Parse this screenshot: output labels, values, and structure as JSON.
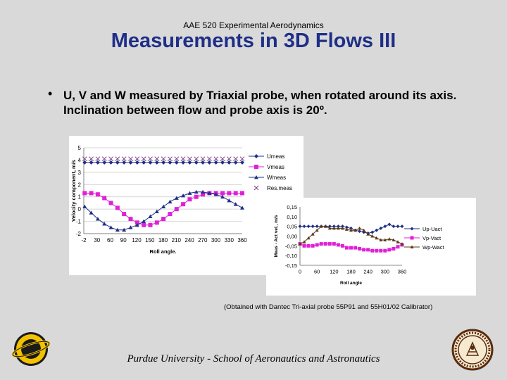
{
  "header": {
    "course": "AAE 520 Experimental Aerodynamics",
    "title": "Measurements in 3D Flows III"
  },
  "bullet": {
    "symbol": "•",
    "text": "U, V and W measured by Triaxial probe, when rotated around its axis. Inclination between flow and probe axis is 20º."
  },
  "caption": "(Obtained with Dantec Tri-axial probe 55P91 and 55H01/02 Calibrator)",
  "footer": "Purdue University - School of Aeronautics and Astronautics",
  "colors": {
    "title": "#1f2f87",
    "background": "#d9d9d9",
    "blue_series": "#1f2f87",
    "magenta_series": "#e020d8",
    "brown_series": "#5c3a17"
  },
  "chart_data": [
    {
      "type": "line",
      "xlabel": "Roll angle.",
      "ylabel": "Velocity component, m/s",
      "xlim": [
        -2,
        360
      ],
      "ylim": [
        -2,
        5
      ],
      "xticks": [
        "-2",
        "30",
        "60",
        "90",
        "120",
        "150",
        "180",
        "210",
        "240",
        "270",
        "300",
        "330",
        "360"
      ],
      "yticks": [
        "-2",
        "-1",
        "0",
        "1",
        "2",
        "3",
        "4",
        "5"
      ],
      "grid": true,
      "legend_position": "right",
      "legend": [
        "Umeas",
        "Vmeas",
        "Wmeas",
        "Res.meas"
      ],
      "x": [
        0,
        15,
        30,
        45,
        60,
        75,
        90,
        105,
        120,
        135,
        150,
        165,
        180,
        195,
        210,
        225,
        240,
        255,
        270,
        285,
        300,
        315,
        330,
        345,
        360
      ],
      "series": [
        {
          "name": "Umeas",
          "color": "#1f2f87",
          "marker": "diamond",
          "values": [
            3.8,
            3.8,
            3.8,
            3.8,
            3.8,
            3.8,
            3.8,
            3.8,
            3.8,
            3.8,
            3.8,
            3.8,
            3.8,
            3.8,
            3.8,
            3.8,
            3.8,
            3.8,
            3.8,
            3.8,
            3.8,
            3.8,
            3.8,
            3.8,
            3.8
          ]
        },
        {
          "name": "Vmeas",
          "color": "#e020d8",
          "marker": "square",
          "values": [
            1.3,
            1.3,
            1.2,
            0.9,
            0.5,
            0.1,
            -0.4,
            -0.8,
            -1.1,
            -1.3,
            -1.3,
            -1.1,
            -0.8,
            -0.4,
            0.0,
            0.4,
            0.8,
            1.0,
            1.2,
            1.3,
            1.3,
            1.3,
            1.3,
            1.3,
            1.3
          ]
        },
        {
          "name": "Wmeas",
          "color": "#1f2f87",
          "marker": "triangle",
          "values": [
            0.2,
            -0.3,
            -0.8,
            -1.2,
            -1.5,
            -1.7,
            -1.7,
            -1.5,
            -1.3,
            -1.0,
            -0.6,
            -0.2,
            0.2,
            0.6,
            0.9,
            1.1,
            1.3,
            1.4,
            1.4,
            1.3,
            1.2,
            1.0,
            0.7,
            0.4,
            0.1
          ]
        },
        {
          "name": "Res.meas",
          "color": "#7d3b8a",
          "marker": "x",
          "values": [
            4.1,
            4.1,
            4.1,
            4.1,
            4.1,
            4.1,
            4.1,
            4.1,
            4.1,
            4.1,
            4.1,
            4.1,
            4.1,
            4.1,
            4.1,
            4.1,
            4.1,
            4.1,
            4.1,
            4.1,
            4.1,
            4.1,
            4.1,
            4.1,
            4.1
          ]
        }
      ]
    },
    {
      "type": "line",
      "xlabel": "Roll angle",
      "ylabel": "Meas - Act vel., m/s",
      "xlim": [
        0,
        360
      ],
      "ylim": [
        -0.15,
        0.15
      ],
      "xticks": [
        "0",
        "60",
        "120",
        "180",
        "240",
        "300",
        "360"
      ],
      "yticks": [
        "-0,15",
        "-0,10",
        "-0,05",
        "0,00",
        "0,05",
        "0,10",
        "0,15"
      ],
      "grid": false,
      "legend_position": "right",
      "legend": [
        "Up-Uact",
        "Vp-Vact",
        "Wp-Wact"
      ],
      "x": [
        0,
        15,
        30,
        45,
        60,
        75,
        90,
        105,
        120,
        135,
        150,
        165,
        180,
        195,
        210,
        225,
        240,
        255,
        270,
        285,
        300,
        315,
        330,
        345,
        360
      ],
      "series": [
        {
          "name": "Up-Uact",
          "color": "#1f2f87",
          "marker": "diamond",
          "values": [
            0.05,
            0.05,
            0.05,
            0.05,
            0.05,
            0.05,
            0.05,
            0.05,
            0.05,
            0.05,
            0.05,
            0.045,
            0.04,
            0.03,
            0.025,
            0.02,
            0.015,
            0.02,
            0.03,
            0.04,
            0.05,
            0.06,
            0.05,
            0.05,
            0.05
          ]
        },
        {
          "name": "Vp-Vact",
          "color": "#e020d8",
          "marker": "square",
          "values": [
            -0.04,
            -0.05,
            -0.05,
            -0.05,
            -0.045,
            -0.04,
            -0.04,
            -0.04,
            -0.04,
            -0.045,
            -0.05,
            -0.06,
            -0.06,
            -0.06,
            -0.065,
            -0.07,
            -0.07,
            -0.075,
            -0.075,
            -0.075,
            -0.075,
            -0.07,
            -0.065,
            -0.055,
            -0.045
          ]
        },
        {
          "name": "Wp-Wact",
          "color": "#5c3a17",
          "marker": "triangle",
          "values": [
            -0.04,
            -0.03,
            -0.01,
            0.01,
            0.03,
            0.05,
            0.05,
            0.04,
            0.04,
            0.04,
            0.04,
            0.035,
            0.03,
            0.03,
            0.04,
            0.03,
            0.01,
            0.0,
            -0.01,
            -0.02,
            -0.02,
            -0.015,
            -0.02,
            -0.03,
            -0.04
          ]
        }
      ]
    }
  ]
}
